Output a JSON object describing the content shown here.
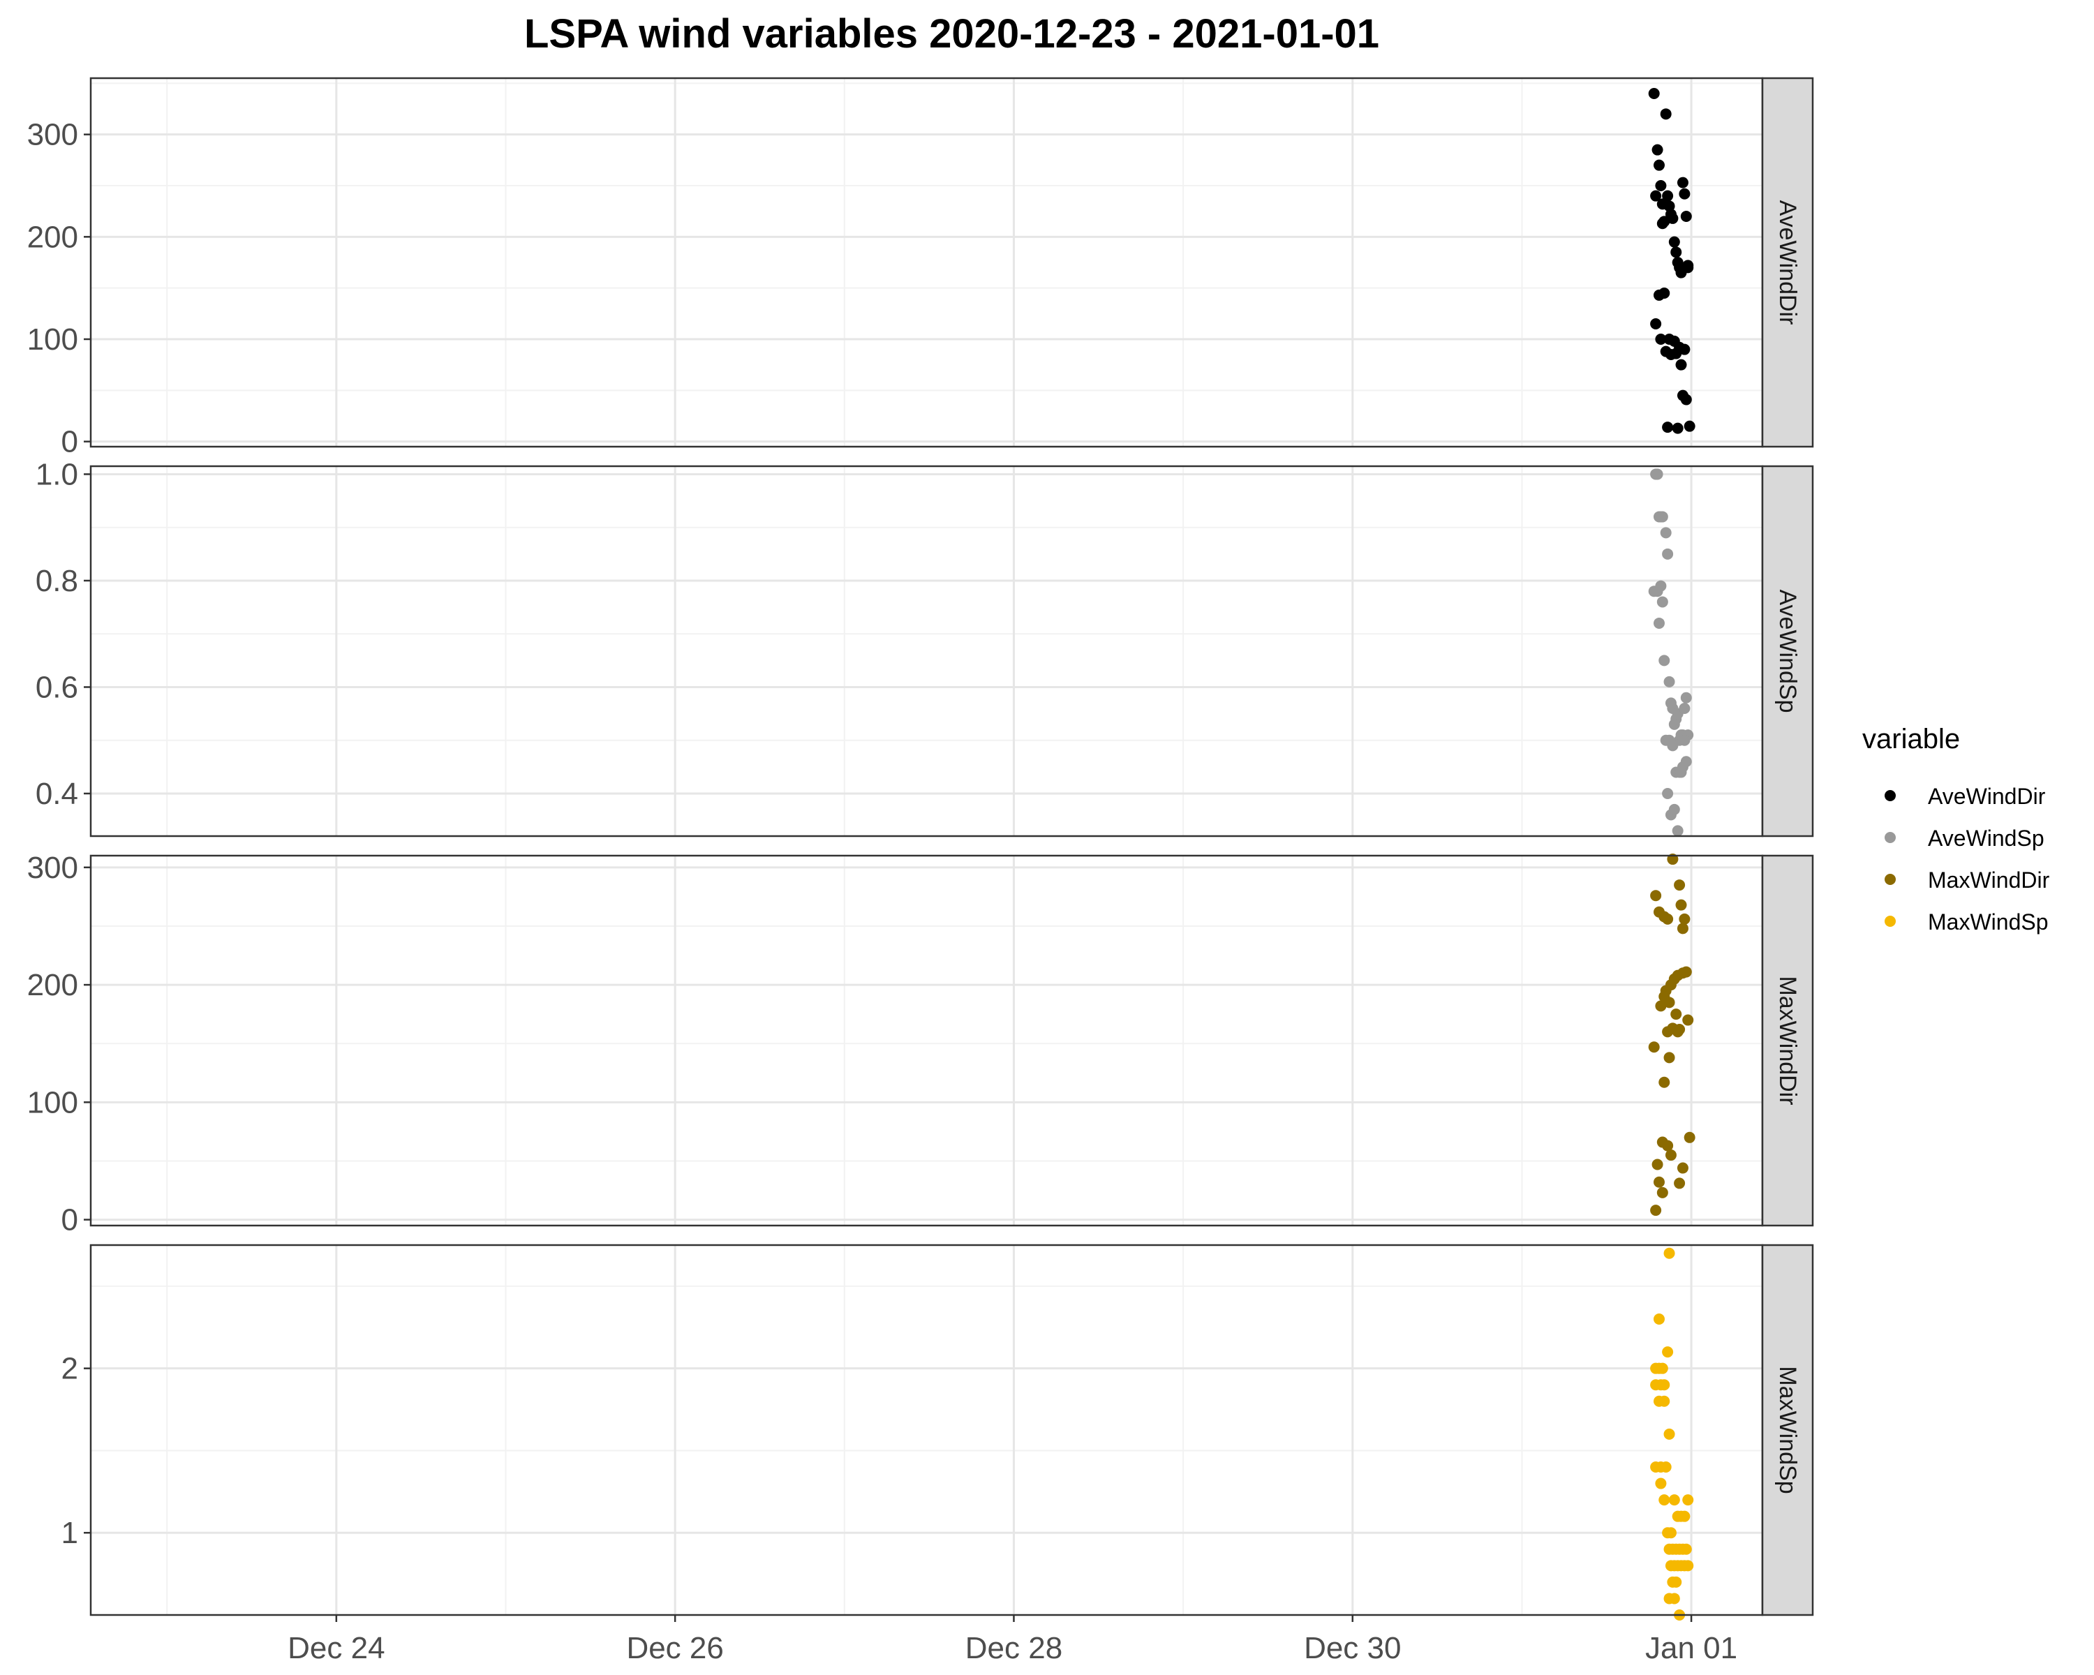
{
  "chart_data": {
    "type": "scatter",
    "title": "LSPA wind variables 2020-12-23 - 2021-01-01",
    "x_ticks": [
      {
        "label": "Dec 24",
        "day": 1
      },
      {
        "label": "Dec 26",
        "day": 3
      },
      {
        "label": "Dec 28",
        "day": 5
      },
      {
        "label": "Dec 30",
        "day": 7
      },
      {
        "label": "Jan 01",
        "day": 9
      }
    ],
    "x_range_days": [
      -0.45,
      9.42
    ],
    "x_range": [
      "2020-12-22 13:12",
      "2021-01-01 10:05"
    ],
    "legend": {
      "title": "variable",
      "position": "right",
      "items": [
        {
          "label": "AveWindDir",
          "color": "#000000"
        },
        {
          "label": "AveWindSp",
          "color": "#999999"
        },
        {
          "label": "MaxWindDir",
          "color": "#8B6A00"
        },
        {
          "label": "MaxWindSp",
          "color": "#F5B800"
        }
      ]
    },
    "grid": true,
    "facets": [
      {
        "name": "AveWindDir",
        "color": "#000000",
        "ylim": [
          -5,
          355
        ],
        "y_ticks": [
          0,
          100,
          200,
          300
        ],
        "y_tick_labels": [
          "0",
          "100",
          "200",
          "300"
        ],
        "x": [
          8.78,
          8.8,
          8.81,
          8.82,
          8.83,
          8.84,
          8.85,
          8.86,
          8.87,
          8.88,
          8.89,
          8.9,
          8.91,
          8.92,
          8.93,
          8.94,
          8.95,
          8.96,
          8.97,
          8.98,
          8.79,
          8.81,
          8.84,
          8.87,
          8.9,
          8.93,
          8.96,
          8.79,
          8.82,
          8.85,
          8.88,
          8.91,
          8.94,
          8.97,
          8.99,
          8.86,
          8.92,
          8.95,
          8.98,
          8.83
        ],
        "y": [
          340,
          285,
          270,
          250,
          232,
          215,
          320,
          240,
          230,
          222,
          218,
          195,
          185,
          175,
          170,
          165,
          253,
          242,
          220,
          172,
          240,
          143,
          145,
          100,
          98,
          92,
          90,
          115,
          100,
          88,
          85,
          86,
          75,
          41,
          15,
          14,
          13,
          45,
          170,
          213
        ]
      },
      {
        "name": "AveWindSp",
        "color": "#999999",
        "ylim": [
          0.32,
          1.015
        ],
        "y_ticks": [
          0.4,
          0.6,
          0.8,
          1.0
        ],
        "y_tick_labels": [
          "0.4",
          "0.6",
          "0.8",
          "1.0"
        ],
        "x": [
          8.79,
          8.8,
          8.81,
          8.82,
          8.83,
          8.85,
          8.86,
          8.78,
          8.8,
          8.82,
          8.83,
          8.81,
          8.84,
          8.87,
          8.88,
          8.89,
          8.9,
          8.91,
          8.92,
          8.93,
          8.94,
          8.95,
          8.96,
          8.97,
          8.98,
          8.85,
          8.87,
          8.89,
          8.91,
          8.93,
          8.95,
          8.97,
          8.86,
          8.88,
          8.9,
          8.92,
          8.94,
          8.96
        ],
        "y": [
          1.0,
          1.0,
          0.92,
          0.92,
          0.92,
          0.89,
          0.85,
          0.78,
          0.78,
          0.79,
          0.76,
          0.72,
          0.65,
          0.61,
          0.57,
          0.56,
          0.53,
          0.54,
          0.55,
          0.5,
          0.51,
          0.51,
          0.56,
          0.58,
          0.51,
          0.5,
          0.5,
          0.49,
          0.44,
          0.44,
          0.45,
          0.46,
          0.4,
          0.36,
          0.37,
          0.33,
          0.44,
          0.5
        ]
      },
      {
        "name": "MaxWindDir",
        "color": "#8B6A00",
        "ylim": [
          -5,
          310
        ],
        "y_ticks": [
          0,
          100,
          200,
          300
        ],
        "y_tick_labels": [
          "0",
          "100",
          "200",
          "300"
        ],
        "x": [
          8.89,
          8.93,
          8.79,
          8.81,
          8.84,
          8.86,
          8.94,
          8.96,
          8.95,
          8.85,
          8.88,
          8.9,
          8.92,
          8.95,
          8.97,
          8.82,
          8.84,
          8.87,
          8.91,
          8.93,
          8.98,
          8.86,
          8.89,
          8.92,
          8.78,
          8.87,
          8.84,
          8.99,
          8.83,
          8.86,
          8.88,
          8.8,
          8.95,
          8.81,
          8.93,
          8.83,
          8.79
        ],
        "y": [
          307,
          285,
          276,
          262,
          258,
          256,
          268,
          256,
          248,
          195,
          200,
          205,
          208,
          210,
          211,
          182,
          190,
          185,
          175,
          162,
          170,
          160,
          163,
          160,
          147,
          138,
          117,
          70,
          66,
          63,
          55,
          47,
          44,
          32,
          31,
          23,
          8
        ]
      },
      {
        "name": "MaxWindSp",
        "color": "#F5B800",
        "ylim": [
          0.5,
          2.75
        ],
        "y_ticks": [
          1,
          2
        ],
        "y_tick_labels": [
          "1",
          "2"
        ],
        "x": [
          8.87,
          8.81,
          8.86,
          8.79,
          8.81,
          8.83,
          8.79,
          8.82,
          8.84,
          8.81,
          8.84,
          8.87,
          8.79,
          8.82,
          8.85,
          8.82,
          8.84,
          8.9,
          8.92,
          8.94,
          8.96,
          8.98,
          8.86,
          8.88,
          8.87,
          8.89,
          8.91,
          8.93,
          8.95,
          8.97,
          8.88,
          8.9,
          8.92,
          8.94,
          8.96,
          8.98,
          8.89,
          8.91,
          8.87,
          8.9,
          8.93
        ],
        "y": [
          2.7,
          2.3,
          2.1,
          2.0,
          2.0,
          2.0,
          1.9,
          1.9,
          1.9,
          1.8,
          1.8,
          1.6,
          1.4,
          1.4,
          1.4,
          1.3,
          1.2,
          1.2,
          1.1,
          1.1,
          1.1,
          1.2,
          1.0,
          1.0,
          0.9,
          0.9,
          0.9,
          0.9,
          0.9,
          0.9,
          0.8,
          0.8,
          0.8,
          0.8,
          0.8,
          0.8,
          0.7,
          0.7,
          0.6,
          0.6,
          0.5
        ]
      }
    ]
  }
}
